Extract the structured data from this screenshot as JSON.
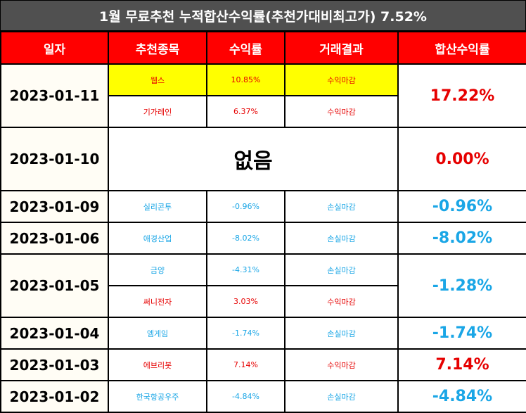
{
  "title": "1월 무료추천 누적합산수익률(추천가대비최고가) 7.52%",
  "headers": [
    "일자",
    "추천종목",
    "수익률",
    "거래결과",
    "합산수익률"
  ],
  "rows": {
    "r0111": {
      "date": "2023-01-11",
      "total": "17.22%",
      "items": [
        {
          "name": "웹스",
          "rate": "10.85%",
          "result": "수익마감"
        },
        {
          "name": "기가레인",
          "rate": "6.37%",
          "result": "수익마감"
        }
      ]
    },
    "r0110": {
      "date": "2023-01-10",
      "none": "없음",
      "total": "0.00%"
    },
    "r0109": {
      "date": "2023-01-09",
      "total": "-0.96%",
      "items": [
        {
          "name": "실리콘투",
          "rate": "-0.96%",
          "result": "손실마감"
        }
      ]
    },
    "r0106": {
      "date": "2023-01-06",
      "total": "-8.02%",
      "items": [
        {
          "name": "애경산업",
          "rate": "-8.02%",
          "result": "손실마감"
        }
      ]
    },
    "r0105": {
      "date": "2023-01-05",
      "total": "-1.28%",
      "items": [
        {
          "name": "금양",
          "rate": "-4.31%",
          "result": "손실마감"
        },
        {
          "name": "써니전자",
          "rate": "3.03%",
          "result": "수익마감"
        }
      ]
    },
    "r0104": {
      "date": "2023-01-04",
      "total": "-1.74%",
      "items": [
        {
          "name": "엠게임",
          "rate": "-1.74%",
          "result": "손실마감"
        }
      ]
    },
    "r0103": {
      "date": "2023-01-03",
      "total": "7.14%",
      "items": [
        {
          "name": "에브리봇",
          "rate": "7.14%",
          "result": "수익마감"
        }
      ]
    },
    "r0102": {
      "date": "2023-01-02",
      "total": "-4.84%",
      "items": [
        {
          "name": "한국항공우주",
          "rate": "-4.84%",
          "result": "손실마감"
        }
      ]
    }
  },
  "colors": {
    "header_bg": "#ff0000",
    "title_bg": "#505050",
    "gain": "#e60000",
    "loss": "#1aa6e6",
    "highlight": "#ffff00"
  }
}
